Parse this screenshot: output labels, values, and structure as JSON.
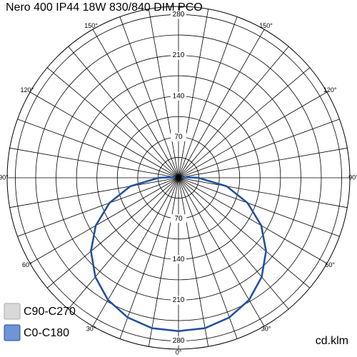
{
  "chart_data": {
    "type": "polar",
    "title": "Nero 400 IP44 18W 830/840 DIM PCO",
    "unit": "cd.klm",
    "rlim": [
      0,
      294
    ],
    "rticks": [
      70,
      140,
      210,
      280
    ],
    "angle_ticks": [
      {
        "value": 0,
        "label": "0°"
      },
      {
        "value": 30,
        "label": "30°"
      },
      {
        "value": 60,
        "label": "60°"
      },
      {
        "value": 90,
        "label": "90°"
      },
      {
        "value": 120,
        "label": "120°"
      },
      {
        "value": 150,
        "label": "150°"
      }
    ],
    "x": [
      0,
      10,
      20,
      30,
      40,
      50,
      60,
      70,
      80,
      90,
      100
    ],
    "series": [
      {
        "name": "C90-C270",
        "color": "#d4d4d4",
        "values": [
          263,
          262,
          255,
          242,
          222,
          196,
          164,
          126,
          84,
          34,
          6
        ]
      },
      {
        "name": "C0-C180",
        "color": "#1f4fa0",
        "values": [
          263,
          262,
          255,
          242,
          222,
          196,
          164,
          126,
          84,
          34,
          6
        ]
      }
    ]
  }
}
